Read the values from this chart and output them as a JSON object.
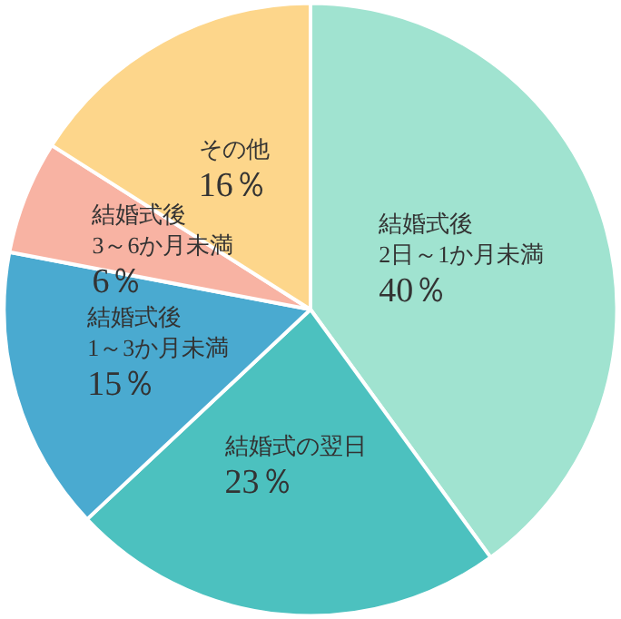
{
  "chart_data": {
    "type": "pie",
    "categories": [
      "結婚式後\n2日～1か月未満",
      "結婚式の翌日",
      "結婚式後\n1～3か月未満",
      "結婚式後\n3～6か月未満",
      "その他"
    ],
    "values": [
      40,
      23,
      15,
      6,
      16
    ],
    "colors": [
      "#a0e3d0",
      "#4cc1bf",
      "#4aaad0",
      "#f8b3a3",
      "#fdd68b"
    ],
    "value_labels": [
      "40％",
      "23％",
      "15％",
      "6％",
      "16％"
    ]
  }
}
